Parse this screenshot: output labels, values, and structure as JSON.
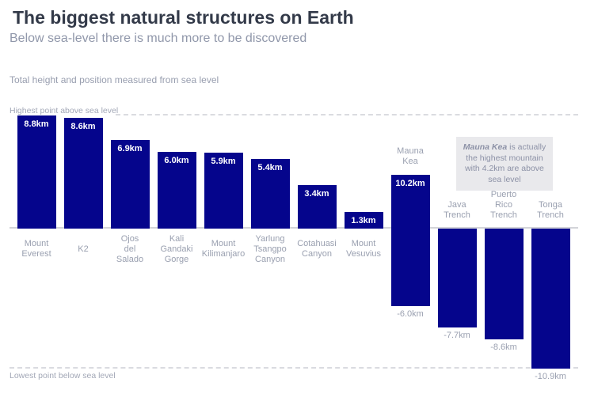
{
  "header": {
    "title": "The biggest natural structures on Earth",
    "subtitle": "Below sea-level there is much more to be discovered",
    "caption": "Total height and position measured from sea level"
  },
  "annotation": {
    "bold": "Mauna Kea",
    "rest": " is actually the highest mountain with 4.2km are above sea level"
  },
  "colors": {
    "bar": "#05058c",
    "title_text": "#333a49",
    "muted_text": "#9aa0b0",
    "axis_line": "#d3d4d9",
    "annotation_bg": "#e9e9ec"
  },
  "chart_data": {
    "type": "bar",
    "title": "Total height and position measured from sea level",
    "unit": "km",
    "sea_level_km": 0,
    "ylim": [
      -10.9,
      8.8
    ],
    "grid": false,
    "legend": "none",
    "axis_labels": {
      "top": "Highest point above sea level",
      "bottom": "Lowest point below sea level"
    },
    "bars": [
      {
        "name": "Mount Everest",
        "name_lines": [
          "Mount",
          "Everest"
        ],
        "top_km": 8.8,
        "bottom_km": 0,
        "value_label": "8.8km",
        "value_label_position": "inside-top",
        "bottom_value_label": null,
        "name_position": "below-axis"
      },
      {
        "name": "K2",
        "name_lines": [
          "K2"
        ],
        "top_km": 8.6,
        "bottom_km": 0,
        "value_label": "8.6km",
        "value_label_position": "inside-top",
        "bottom_value_label": null,
        "name_position": "below-axis"
      },
      {
        "name": "Ojos del Salado",
        "name_lines": [
          "Ojos",
          "del",
          "Salado"
        ],
        "top_km": 6.9,
        "bottom_km": 0,
        "value_label": "6.9km",
        "value_label_position": "inside-top",
        "bottom_value_label": null,
        "name_position": "below-axis"
      },
      {
        "name": "Kali Gandaki Gorge",
        "name_lines": [
          "Kali",
          "Gandaki",
          "Gorge"
        ],
        "top_km": 6.0,
        "bottom_km": 0,
        "value_label": "6.0km",
        "value_label_position": "inside-top",
        "bottom_value_label": null,
        "name_position": "below-axis"
      },
      {
        "name": "Mount Kilimanjaro",
        "name_lines": [
          "Mount",
          "Kilimanjaro"
        ],
        "top_km": 5.9,
        "bottom_km": 0,
        "value_label": "5.9km",
        "value_label_position": "inside-top",
        "bottom_value_label": null,
        "name_position": "below-axis"
      },
      {
        "name": "Yarlung Tsangpo Canyon",
        "name_lines": [
          "Yarlung",
          "Tsangpo",
          "Canyon"
        ],
        "top_km": 5.4,
        "bottom_km": 0,
        "value_label": "5.4km",
        "value_label_position": "inside-top",
        "bottom_value_label": null,
        "name_position": "below-axis"
      },
      {
        "name": "Cotahuasi Canyon",
        "name_lines": [
          "Cotahuasi",
          "Canyon"
        ],
        "top_km": 3.4,
        "bottom_km": 0,
        "value_label": "3.4km",
        "value_label_position": "inside-top",
        "bottom_value_label": null,
        "name_position": "below-axis"
      },
      {
        "name": "Mount Vesuvius",
        "name_lines": [
          "Mount",
          "Vesuvius"
        ],
        "top_km": 1.3,
        "bottom_km": 0,
        "value_label": "1.3km",
        "value_label_position": "inside-top",
        "bottom_value_label": null,
        "name_position": "below-axis"
      },
      {
        "name": "Mauna Kea",
        "name_lines": [
          "Mauna",
          "Kea"
        ],
        "top_km": 4.2,
        "bottom_km": -6.0,
        "value_label": "10.2km",
        "value_label_position": "inside-top",
        "bottom_value_label": "-6.0km",
        "name_position": "above-bar"
      },
      {
        "name": "Java Trench",
        "name_lines": [
          "Java",
          "Trench"
        ],
        "top_km": 0,
        "bottom_km": -7.7,
        "value_label": null,
        "value_label_position": "none",
        "bottom_value_label": "-7.7km",
        "name_position": "above-bar"
      },
      {
        "name": "Puerto Rico Trench",
        "name_lines": [
          "Puerto",
          "Rico",
          "Trench"
        ],
        "top_km": 0,
        "bottom_km": -8.6,
        "value_label": null,
        "value_label_position": "none",
        "bottom_value_label": "-8.6km",
        "name_position": "above-bar"
      },
      {
        "name": "Tonga Trench",
        "name_lines": [
          "Tonga",
          "Trench"
        ],
        "top_km": 0,
        "bottom_km": -10.9,
        "value_label": null,
        "value_label_position": "none",
        "bottom_value_label": "-10.9km",
        "name_position": "above-bar"
      }
    ]
  }
}
